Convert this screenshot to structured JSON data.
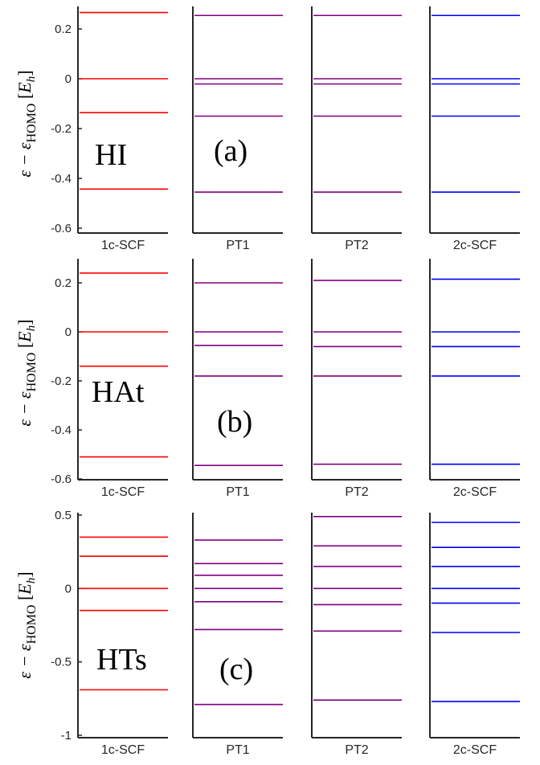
{
  "chart_data": [
    {
      "type": "energy-level",
      "panel_label": "(a)",
      "molecule": "HI",
      "ylabel": "ε − ε_HOMO [E_h]",
      "ylim": [
        -0.6,
        0.3
      ],
      "yticks": [
        0.2,
        0,
        -0.2,
        -0.4,
        -0.6
      ],
      "ytick_labels": [
        "0.2",
        "0",
        "-0.2",
        "-0.4",
        "-0.6"
      ],
      "columns": [
        {
          "name": "1c-SCF",
          "color": "#ff0000",
          "levels": [
            0.266,
            0.0,
            -0.136,
            -0.443
          ]
        },
        {
          "name": "PT1",
          "color": "#800080",
          "levels": [
            0.254,
            0.0,
            -0.021,
            -0.15,
            -0.455
          ]
        },
        {
          "name": "PT2",
          "color": "#800080",
          "levels": [
            0.254,
            0.0,
            -0.021,
            -0.15,
            -0.455
          ]
        },
        {
          "name": "2c-SCF",
          "color": "#0000ff",
          "levels": [
            0.254,
            0.0,
            -0.021,
            -0.15,
            -0.455
          ]
        }
      ]
    },
    {
      "type": "energy-level",
      "panel_label": "(b)",
      "molecule": "HAt",
      "ylabel": "ε − ε_HOMO [E_h]",
      "ylim": [
        -0.6,
        0.3
      ],
      "yticks": [
        0.2,
        0,
        -0.2,
        -0.4,
        -0.6
      ],
      "ytick_labels": [
        "0.2",
        "0",
        "-0.2",
        "-0.4",
        "-0.6"
      ],
      "columns": [
        {
          "name": "1c-SCF",
          "color": "#ff0000",
          "levels": [
            0.24,
            0.0,
            -0.14,
            -0.51
          ]
        },
        {
          "name": "PT1",
          "color": "#800080",
          "levels": [
            0.2,
            0.0,
            -0.055,
            -0.18,
            -0.545
          ]
        },
        {
          "name": "PT2",
          "color": "#800080",
          "levels": [
            0.21,
            0.0,
            -0.06,
            -0.18,
            -0.54
          ]
        },
        {
          "name": "2c-SCF",
          "color": "#0000ff",
          "levels": [
            0.215,
            0.0,
            -0.06,
            -0.18,
            -0.54
          ]
        }
      ]
    },
    {
      "type": "energy-level",
      "panel_label": "(c)",
      "molecule": "HTs",
      "ylabel": "ε − ε_HOMO [E_h]",
      "ylim": [
        -1,
        0.5
      ],
      "yticks": [
        0.5,
        0,
        -0.5,
        -1
      ],
      "ytick_labels": [
        "0.5",
        "0",
        "-0.5",
        "-1"
      ],
      "columns": [
        {
          "name": "1c-SCF",
          "color": "#ff0000",
          "levels": [
            0.35,
            0.22,
            0.0,
            -0.15,
            -0.69
          ]
        },
        {
          "name": "PT1",
          "color": "#800080",
          "levels": [
            0.33,
            0.17,
            0.09,
            0.0,
            -0.09,
            -0.28,
            -0.79
          ]
        },
        {
          "name": "PT2",
          "color": "#800080",
          "levels": [
            0.49,
            0.29,
            0.15,
            0.0,
            -0.11,
            -0.29,
            -0.76
          ]
        },
        {
          "name": "2c-SCF",
          "color": "#0000ff",
          "levels": [
            0.45,
            0.28,
            0.15,
            0.0,
            -0.1,
            -0.3,
            -0.77
          ]
        }
      ]
    }
  ]
}
